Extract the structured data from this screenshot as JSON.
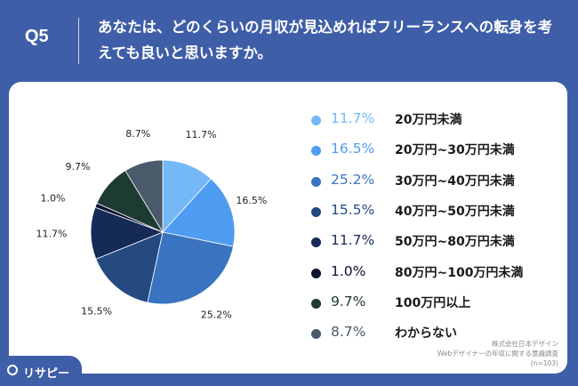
{
  "header": {
    "question_number": "Q5",
    "title": "あなたは、どのくらいの月収が見込めればフリーランスへの転身を考えても良いと思いますか。"
  },
  "chart_data": {
    "type": "pie",
    "categories": [
      "20万円未満",
      "20万円~30万円未満",
      "30万円~40万円未満",
      "40万円~50万円未満",
      "50万円~80万円未満",
      "80万円~100万円未満",
      "100万円以上",
      "わからない"
    ],
    "values": [
      11.7,
      16.5,
      25.2,
      15.5,
      11.7,
      1.0,
      9.7,
      8.7
    ],
    "labels": [
      "11.7%",
      "16.5%",
      "25.2%",
      "15.5%",
      "11.7%",
      "1.0%",
      "9.7%",
      "8.7%"
    ],
    "colors": [
      "#74b8f7",
      "#4f9cf2",
      "#3a73bf",
      "#244a80",
      "#152a56",
      "#0a1230",
      "#1d3a33",
      "#4a5a6b"
    ]
  },
  "source": {
    "line1": "株式会社日本デザイン",
    "line2": "Webデザイナーの年収に関する意識調査",
    "line3": "(n=103)"
  },
  "logo": {
    "text": "リサピー",
    "icon": "lisapie-logo-icon"
  }
}
